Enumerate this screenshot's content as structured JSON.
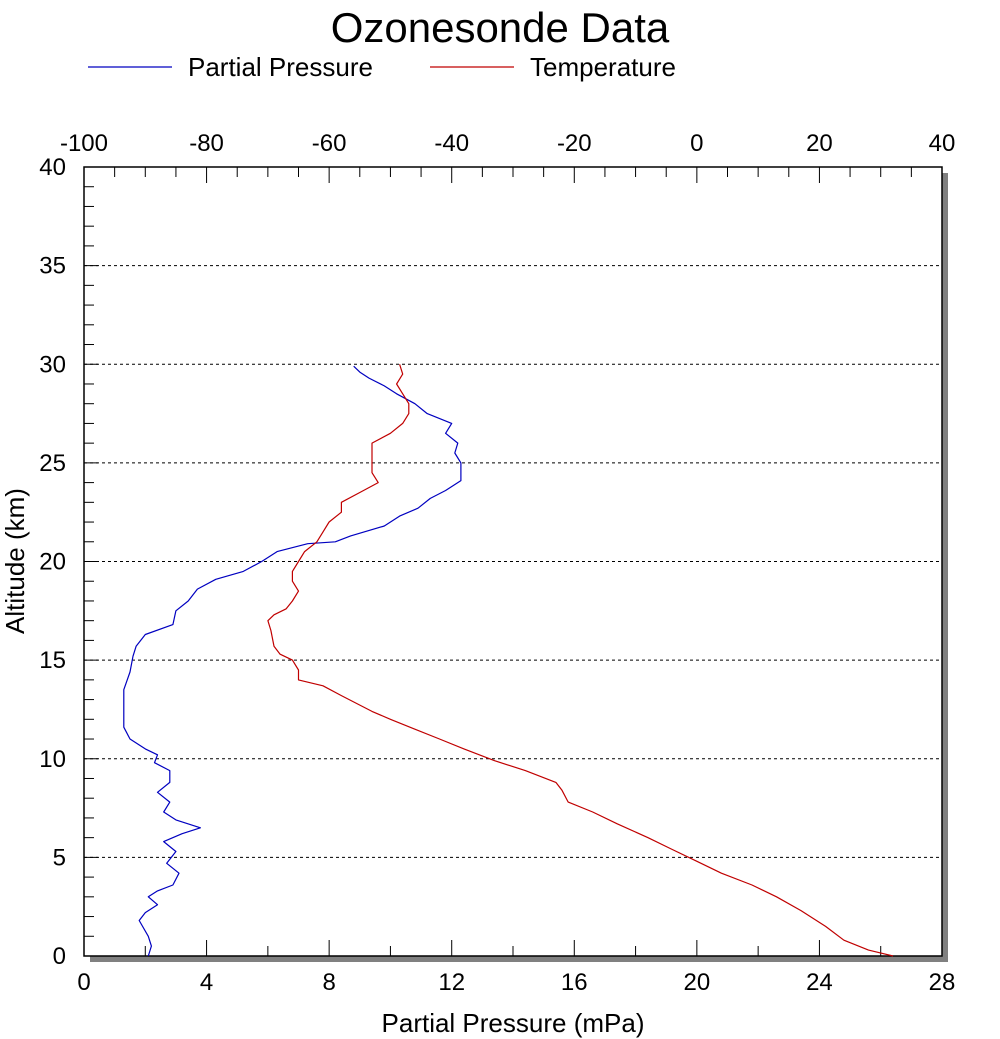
{
  "chart_data": {
    "type": "line",
    "title": "Ozonesonde Data",
    "legend": {
      "placement": "top",
      "entries": [
        {
          "name": "Partial Pressure",
          "color": "#0000c0"
        },
        {
          "name": "Temperature",
          "color": "#c00000"
        }
      ]
    },
    "grid": {
      "horizontal": true,
      "style": "dotted"
    },
    "x_axis_bottom": {
      "label": "Partial Pressure (mPa)",
      "range": [
        0,
        28
      ],
      "ticks": [
        "0",
        "4",
        "8",
        "12",
        "16",
        "20",
        "24",
        "28"
      ]
    },
    "x_axis_top": {
      "label": "",
      "range": [
        -100,
        40
      ],
      "ticks": [
        "-100",
        "-80",
        "-60",
        "-40",
        "-20",
        "0",
        "20",
        "40"
      ]
    },
    "y_axis": {
      "label": "Altitude (km)",
      "range": [
        0,
        40
      ],
      "ticks": [
        "0",
        "5",
        "10",
        "15",
        "20",
        "25",
        "30",
        "35",
        "40"
      ]
    },
    "series": [
      {
        "name": "Partial Pressure",
        "axis": "bottom",
        "color": "#0000c0",
        "points": [
          [
            2.1,
            0.0
          ],
          [
            2.2,
            0.5
          ],
          [
            2.1,
            1.0
          ],
          [
            1.8,
            1.8
          ],
          [
            2.0,
            2.2
          ],
          [
            2.4,
            2.6
          ],
          [
            2.1,
            3.0
          ],
          [
            2.4,
            3.3
          ],
          [
            2.9,
            3.6
          ],
          [
            3.1,
            4.2
          ],
          [
            2.7,
            4.7
          ],
          [
            3.0,
            5.3
          ],
          [
            2.6,
            5.8
          ],
          [
            3.2,
            6.2
          ],
          [
            3.8,
            6.5
          ],
          [
            3.0,
            6.9
          ],
          [
            2.6,
            7.3
          ],
          [
            2.8,
            7.8
          ],
          [
            2.4,
            8.3
          ],
          [
            2.8,
            8.8
          ],
          [
            2.8,
            9.4
          ],
          [
            2.3,
            9.8
          ],
          [
            2.4,
            10.2
          ],
          [
            2.0,
            10.5
          ],
          [
            1.5,
            11.0
          ],
          [
            1.3,
            11.6
          ],
          [
            1.3,
            12.5
          ],
          [
            1.3,
            13.5
          ],
          [
            1.5,
            14.4
          ],
          [
            1.6,
            15.2
          ],
          [
            1.7,
            15.7
          ],
          [
            2.0,
            16.3
          ],
          [
            2.9,
            16.8
          ],
          [
            3.0,
            17.5
          ],
          [
            3.4,
            18.0
          ],
          [
            3.7,
            18.6
          ],
          [
            4.3,
            19.1
          ],
          [
            5.2,
            19.5
          ],
          [
            5.8,
            20.0
          ],
          [
            6.3,
            20.5
          ],
          [
            7.3,
            20.9
          ],
          [
            8.2,
            21.0
          ],
          [
            8.7,
            21.3
          ],
          [
            9.8,
            21.8
          ],
          [
            10.3,
            22.3
          ],
          [
            10.9,
            22.7
          ],
          [
            11.3,
            23.2
          ],
          [
            11.8,
            23.6
          ],
          [
            12.3,
            24.1
          ],
          [
            12.3,
            24.6
          ],
          [
            12.3,
            25.0
          ],
          [
            12.1,
            25.5
          ],
          [
            12.2,
            26.0
          ],
          [
            11.8,
            26.5
          ],
          [
            12.0,
            27.0
          ],
          [
            11.2,
            27.5
          ],
          [
            10.8,
            28.0
          ],
          [
            10.2,
            28.5
          ],
          [
            9.8,
            28.9
          ],
          [
            9.3,
            29.3
          ],
          [
            9.0,
            29.6
          ],
          [
            8.8,
            29.9
          ]
        ]
      },
      {
        "name": "Temperature",
        "axis": "top",
        "color": "#c00000",
        "points": [
          [
            32.0,
            0.0
          ],
          [
            28.0,
            0.3
          ],
          [
            24.0,
            0.8
          ],
          [
            21.0,
            1.5
          ],
          [
            17.0,
            2.3
          ],
          [
            13.0,
            3.0
          ],
          [
            9.0,
            3.6
          ],
          [
            4.0,
            4.2
          ],
          [
            0.0,
            4.8
          ],
          [
            -4.0,
            5.4
          ],
          [
            -8.0,
            6.0
          ],
          [
            -13.0,
            6.7
          ],
          [
            -17.0,
            7.3
          ],
          [
            -21.0,
            7.8
          ],
          [
            -22.0,
            8.4
          ],
          [
            -23.0,
            8.8
          ],
          [
            -28.0,
            9.4
          ],
          [
            -33.0,
            9.9
          ],
          [
            -38.0,
            10.5
          ],
          [
            -42.0,
            11.0
          ],
          [
            -46.0,
            11.5
          ],
          [
            -50.0,
            12.0
          ],
          [
            -53.0,
            12.4
          ],
          [
            -58.0,
            13.2
          ],
          [
            -61.0,
            13.7
          ],
          [
            -65.0,
            14.0
          ],
          [
            -65.0,
            14.5
          ],
          [
            -66.0,
            15.0
          ],
          [
            -68.0,
            15.3
          ],
          [
            -69.0,
            15.7
          ],
          [
            -69.5,
            16.5
          ],
          [
            -70.0,
            17.0
          ],
          [
            -69.0,
            17.3
          ],
          [
            -67.0,
            17.6
          ],
          [
            -66.0,
            18.0
          ],
          [
            -65.0,
            18.5
          ],
          [
            -66.0,
            19.0
          ],
          [
            -66.0,
            19.5
          ],
          [
            -65.0,
            20.0
          ],
          [
            -64.0,
            20.5
          ],
          [
            -62.0,
            21.0
          ],
          [
            -61.0,
            21.5
          ],
          [
            -60.0,
            22.0
          ],
          [
            -58.0,
            22.5
          ],
          [
            -58.0,
            23.0
          ],
          [
            -55.0,
            23.5
          ],
          [
            -52.0,
            24.0
          ],
          [
            -53.0,
            24.5
          ],
          [
            -53.0,
            25.0
          ],
          [
            -53.0,
            25.5
          ],
          [
            -53.0,
            26.0
          ],
          [
            -50.0,
            26.5
          ],
          [
            -48.0,
            27.0
          ],
          [
            -47.0,
            27.5
          ],
          [
            -47.0,
            28.0
          ],
          [
            -48.0,
            28.5
          ],
          [
            -49.0,
            29.0
          ],
          [
            -48.0,
            29.5
          ],
          [
            -48.5,
            30.0
          ]
        ]
      }
    ]
  }
}
